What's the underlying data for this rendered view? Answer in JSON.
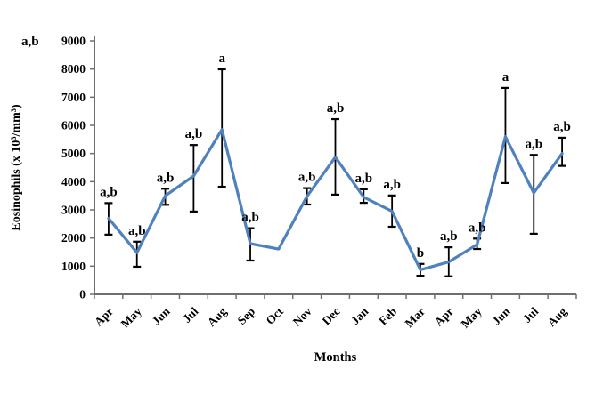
{
  "chart_data": {
    "type": "line",
    "title": "",
    "xlabel": "Months",
    "ylabel": "Eosinophils (x 10³/mm³)",
    "ylim": [
      0,
      9000
    ],
    "ytick_step": 1000,
    "ytick_labels": [
      "0",
      "1000",
      "2000",
      "3000",
      "4000",
      "5000",
      "6000",
      "7000",
      "8000",
      "9000"
    ],
    "grid": false,
    "legend_position": "none",
    "categories": [
      "Apr",
      "May",
      "Jun",
      "Jul",
      "Aug",
      "Sep",
      "Oct",
      "Nov",
      "Dec",
      "Jan",
      "Feb",
      "Mar",
      "Apr",
      "May",
      "Jun",
      "Jul",
      "Aug"
    ],
    "series": [
      {
        "name": "Eosinophils (x 10³/mm³)",
        "color": "#4f81bd",
        "values": [
          2700,
          1480,
          3500,
          4200,
          5850,
          1800,
          1610,
          3480,
          4870,
          3450,
          2950,
          870,
          1150,
          1770,
          5600,
          3600,
          5000
        ],
        "error_plus": [
          540,
          390,
          250,
          1100,
          2140,
          550,
          0,
          290,
          1350,
          280,
          560,
          210,
          520,
          210,
          1730,
          1350,
          560
        ],
        "error_minus": [
          580,
          500,
          320,
          1260,
          2030,
          600,
          0,
          290,
          1330,
          200,
          550,
          210,
          510,
          160,
          1650,
          1450,
          440
        ],
        "point_labels": [
          "a,b",
          "a,b",
          "a,b",
          "a,b",
          "a",
          "a,b",
          "",
          "a,b",
          "a,b",
          "a,b",
          "a,b",
          "b",
          "a,b",
          "a,b",
          "a",
          "a,b",
          "a,b"
        ]
      }
    ],
    "corner_annotation": "a,b",
    "axis_color": "#6f6f6f",
    "error_bar_color": "#000000",
    "text_color": "#000000"
  }
}
